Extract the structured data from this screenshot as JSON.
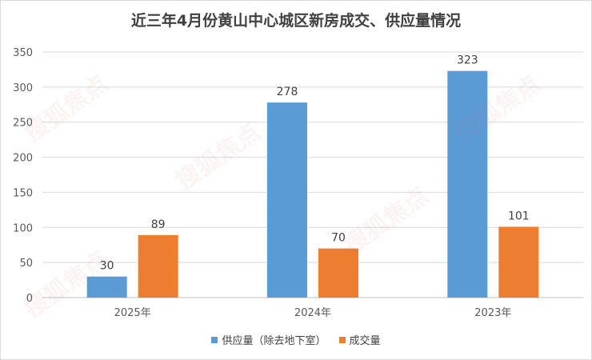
{
  "chart_data": {
    "type": "bar",
    "title": "近三年4月份黄山中心城区新房成交、供应量情况",
    "categories": [
      "2025年",
      "2024年",
      "2023年"
    ],
    "series": [
      {
        "name": "供应量（除去地下室）",
        "values": [
          30,
          278,
          323
        ],
        "color": "#5b9bd5"
      },
      {
        "name": "成交量",
        "values": [
          89,
          70,
          101
        ],
        "color": "#ed7d31"
      }
    ],
    "ylim": [
      0,
      350
    ],
    "yticks": [
      0,
      50,
      100,
      150,
      200,
      250,
      300,
      350
    ],
    "grid": true,
    "legend_position": "bottom"
  },
  "watermark": {
    "text": "搜狐焦点"
  }
}
